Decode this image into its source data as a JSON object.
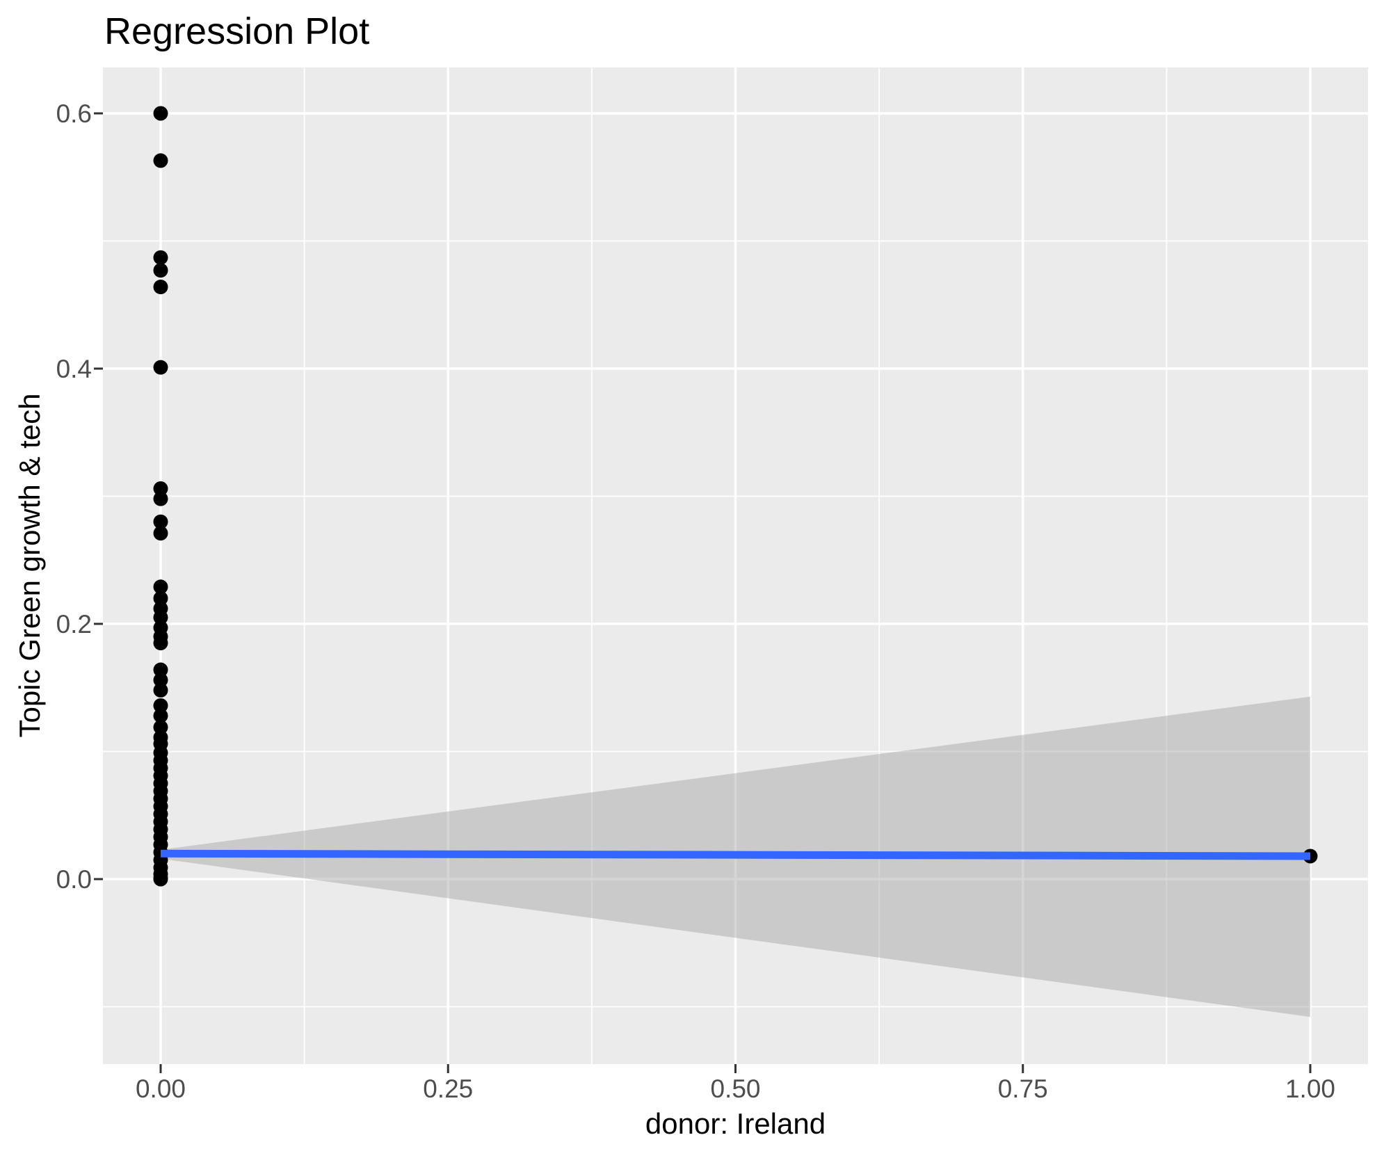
{
  "chart_data": {
    "type": "scatter",
    "title": "Regression Plot",
    "xlabel": "donor: Ireland",
    "ylabel": "Topic Green growth & tech",
    "xlim": [
      -0.05,
      1.05
    ],
    "ylim": [
      -0.145,
      0.635
    ],
    "grid": true,
    "legend": false,
    "x_ticks": {
      "values": [
        0,
        0.25,
        0.5,
        0.75,
        1.0
      ],
      "labels": [
        "0.00",
        "0.25",
        "0.50",
        "0.75",
        "1.00"
      ]
    },
    "y_ticks": {
      "values": [
        0,
        0.2,
        0.4,
        0.6
      ],
      "labels": [
        "0.0",
        "0.2",
        "0.4",
        "0.6"
      ]
    },
    "x_minor_gridlines": [
      0.125,
      0.375,
      0.625,
      0.875
    ],
    "y_minor_gridlines": [
      -0.1,
      0.1,
      0.3,
      0.5
    ],
    "points_at_x0": [
      0.6,
      0.563,
      0.487,
      0.477,
      0.464,
      0.401,
      0.306,
      0.298,
      0.28,
      0.271,
      0.229,
      0.22,
      0.212,
      0.205,
      0.197,
      0.19,
      0.185,
      0.164,
      0.156,
      0.148,
      0.136,
      0.128,
      0.119,
      0.111,
      0.106,
      0.099,
      0.093,
      0.087,
      0.081,
      0.075,
      0.069,
      0.063,
      0.057,
      0.051,
      0.045,
      0.039,
      0.033,
      0.027,
      0.021,
      0.015,
      0.009,
      0.004,
      0.001,
      0.0
    ],
    "point_at_x1": {
      "x": 1.0,
      "y": 0.018
    },
    "regression_line": {
      "x": [
        0,
        1
      ],
      "y": [
        0.02,
        0.018
      ]
    },
    "ci_ribbon": {
      "x": [
        0,
        1
      ],
      "upper": [
        0.023,
        0.143
      ],
      "lower": [
        0.016,
        -0.108
      ]
    },
    "colors": {
      "panel_background": "#EBEBEB",
      "gridline": "#FFFFFF",
      "point": "#000000",
      "regression_line": "#3366FF",
      "ribbon": "#A4A4A4",
      "ribbon_opacity": 0.46,
      "tick_mark": "#333333",
      "tick_label": "#4D4D4D",
      "axis_title": "#000000"
    }
  }
}
